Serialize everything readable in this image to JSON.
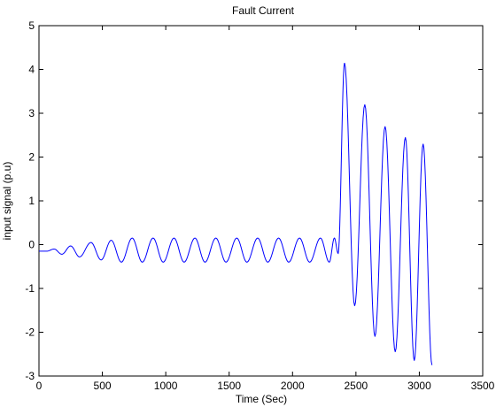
{
  "chart_data": {
    "type": "line",
    "title": "Fault Current",
    "xlabel": "Time (Sec)",
    "ylabel": "input signal (p.u)",
    "xlim": [
      0,
      3500
    ],
    "ylim": [
      -3,
      5
    ],
    "xticks": [
      0,
      500,
      1000,
      1500,
      2000,
      2500,
      3000,
      3500
    ],
    "yticks": [
      -3,
      -2,
      -1,
      0,
      1,
      2,
      3,
      4,
      5
    ],
    "grid": false,
    "line_color": "#0000ff",
    "series": [
      {
        "values": [
          [
            0,
            -0.15
          ],
          [
            60,
            -0.15
          ],
          [
            120,
            -0.1
          ],
          [
            180,
            -0.22
          ],
          [
            250,
            -0.03
          ],
          [
            320,
            -0.28
          ],
          [
            410,
            0.05
          ],
          [
            490,
            -0.35
          ],
          [
            570,
            0.1
          ],
          [
            650,
            -0.4
          ],
          [
            735,
            0.15
          ],
          [
            815,
            -0.4
          ],
          [
            900,
            0.15
          ],
          [
            980,
            -0.4
          ],
          [
            1065,
            0.15
          ],
          [
            1145,
            -0.4
          ],
          [
            1230,
            0.15
          ],
          [
            1310,
            -0.4
          ],
          [
            1395,
            0.15
          ],
          [
            1475,
            -0.4
          ],
          [
            1560,
            0.15
          ],
          [
            1640,
            -0.4
          ],
          [
            1725,
            0.15
          ],
          [
            1805,
            -0.4
          ],
          [
            1890,
            0.15
          ],
          [
            1970,
            -0.4
          ],
          [
            2055,
            0.15
          ],
          [
            2135,
            -0.4
          ],
          [
            2220,
            0.15
          ],
          [
            2290,
            -0.4
          ],
          [
            2330,
            0.15
          ],
          [
            2360,
            -0.2
          ],
          [
            2410,
            4.15
          ],
          [
            2490,
            -1.4
          ],
          [
            2570,
            3.2
          ],
          [
            2650,
            -2.1
          ],
          [
            2730,
            2.7
          ],
          [
            2810,
            -2.45
          ],
          [
            2890,
            2.45
          ],
          [
            2960,
            -2.65
          ],
          [
            3030,
            2.3
          ],
          [
            3100,
            -2.75
          ]
        ]
      }
    ]
  }
}
